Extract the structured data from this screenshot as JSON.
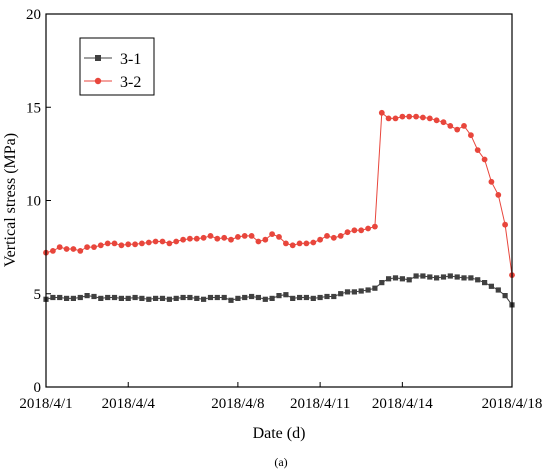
{
  "chart_data": {
    "type": "line",
    "caption": "(a)",
    "xlabel": "Date (d)",
    "ylabel": "Vertical stress (MPa)",
    "ylim": [
      0,
      20
    ],
    "y_ticks": [
      0,
      5,
      10,
      15,
      20
    ],
    "x_tick_labels": [
      "2018/4/1",
      "2018/4/4",
      "2018/4/8",
      "2018/4/11",
      "2018/4/14",
      "2018/4/18"
    ],
    "grid": false,
    "legend": "top-left",
    "series": [
      {
        "name": "3-1",
        "color": "#404040",
        "marker": "square",
        "x": [
          "2018/4/1 00:00",
          "2018/4/1 06:00",
          "2018/4/1 12:00",
          "2018/4/1 18:00",
          "2018/4/2 00:00",
          "2018/4/2 06:00",
          "2018/4/2 12:00",
          "2018/4/2 18:00",
          "2018/4/3 00:00",
          "2018/4/3 06:00",
          "2018/4/3 12:00",
          "2018/4/3 18:00",
          "2018/4/4 00:00",
          "2018/4/4 06:00",
          "2018/4/4 12:00",
          "2018/4/4 18:00",
          "2018/4/5 00:00",
          "2018/4/5 06:00",
          "2018/4/5 12:00",
          "2018/4/5 18:00",
          "2018/4/6 00:00",
          "2018/4/6 06:00",
          "2018/4/6 12:00",
          "2018/4/6 18:00",
          "2018/4/7 00:00",
          "2018/4/7 06:00",
          "2018/4/7 12:00",
          "2018/4/7 18:00",
          "2018/4/8 00:00",
          "2018/4/8 06:00",
          "2018/4/8 12:00",
          "2018/4/8 18:00",
          "2018/4/9 00:00",
          "2018/4/9 06:00",
          "2018/4/9 12:00",
          "2018/4/9 18:00",
          "2018/4/10 00:00",
          "2018/4/10 06:00",
          "2018/4/10 12:00",
          "2018/4/10 18:00",
          "2018/4/11 00:00",
          "2018/4/11 06:00",
          "2018/4/11 12:00",
          "2018/4/11 18:00",
          "2018/4/12 00:00",
          "2018/4/12 06:00",
          "2018/4/12 12:00",
          "2018/4/12 18:00",
          "2018/4/13 00:00",
          "2018/4/13 06:00",
          "2018/4/13 12:00",
          "2018/4/13 18:00",
          "2018/4/14 00:00",
          "2018/4/14 06:00",
          "2018/4/14 12:00",
          "2018/4/14 18:00",
          "2018/4/15 00:00",
          "2018/4/15 06:00",
          "2018/4/15 12:00",
          "2018/4/15 18:00",
          "2018/4/16 00:00",
          "2018/4/16 06:00",
          "2018/4/16 12:00",
          "2018/4/16 18:00",
          "2018/4/17 00:00",
          "2018/4/17 06:00",
          "2018/4/17 12:00",
          "2018/4/17 18:00",
          "2018/4/18 00:00"
        ],
        "y": [
          4.7,
          4.8,
          4.8,
          4.75,
          4.75,
          4.8,
          4.9,
          4.85,
          4.75,
          4.8,
          4.8,
          4.75,
          4.75,
          4.8,
          4.75,
          4.7,
          4.75,
          4.75,
          4.7,
          4.75,
          4.8,
          4.8,
          4.75,
          4.7,
          4.8,
          4.8,
          4.8,
          4.65,
          4.75,
          4.8,
          4.85,
          4.8,
          4.7,
          4.75,
          4.9,
          4.95,
          4.75,
          4.8,
          4.8,
          4.75,
          4.8,
          4.85,
          4.85,
          5.0,
          5.1,
          5.1,
          5.15,
          5.2,
          5.3,
          5.6,
          5.8,
          5.85,
          5.8,
          5.75,
          5.95,
          5.95,
          5.9,
          5.85,
          5.9,
          5.95,
          5.9,
          5.85,
          5.85,
          5.75,
          5.6,
          5.4,
          5.2,
          4.9,
          4.4
        ]
      },
      {
        "name": "3-2",
        "color": "#e8463c",
        "marker": "circle",
        "x": [
          "2018/4/1 00:00",
          "2018/4/1 06:00",
          "2018/4/1 12:00",
          "2018/4/1 18:00",
          "2018/4/2 00:00",
          "2018/4/2 06:00",
          "2018/4/2 12:00",
          "2018/4/2 18:00",
          "2018/4/3 00:00",
          "2018/4/3 06:00",
          "2018/4/3 12:00",
          "2018/4/3 18:00",
          "2018/4/4 00:00",
          "2018/4/4 06:00",
          "2018/4/4 12:00",
          "2018/4/4 18:00",
          "2018/4/5 00:00",
          "2018/4/5 06:00",
          "2018/4/5 12:00",
          "2018/4/5 18:00",
          "2018/4/6 00:00",
          "2018/4/6 06:00",
          "2018/4/6 12:00",
          "2018/4/6 18:00",
          "2018/4/7 00:00",
          "2018/4/7 06:00",
          "2018/4/7 12:00",
          "2018/4/7 18:00",
          "2018/4/8 00:00",
          "2018/4/8 06:00",
          "2018/4/8 12:00",
          "2018/4/8 18:00",
          "2018/4/9 00:00",
          "2018/4/9 06:00",
          "2018/4/9 12:00",
          "2018/4/9 18:00",
          "2018/4/10 00:00",
          "2018/4/10 06:00",
          "2018/4/10 12:00",
          "2018/4/10 18:00",
          "2018/4/11 00:00",
          "2018/4/11 06:00",
          "2018/4/11 12:00",
          "2018/4/11 18:00",
          "2018/4/12 00:00",
          "2018/4/12 06:00",
          "2018/4/12 12:00",
          "2018/4/12 18:00",
          "2018/4/13 00:00",
          "2018/4/13 06:00",
          "2018/4/13 12:00",
          "2018/4/13 18:00",
          "2018/4/14 00:00",
          "2018/4/14 06:00",
          "2018/4/14 12:00",
          "2018/4/14 18:00",
          "2018/4/15 00:00",
          "2018/4/15 06:00",
          "2018/4/15 12:00",
          "2018/4/15 18:00",
          "2018/4/16 00:00",
          "2018/4/16 06:00",
          "2018/4/16 12:00",
          "2018/4/16 18:00",
          "2018/4/17 00:00",
          "2018/4/17 06:00",
          "2018/4/17 12:00",
          "2018/4/17 18:00",
          "2018/4/18 00:00"
        ],
        "y": [
          7.2,
          7.3,
          7.5,
          7.4,
          7.4,
          7.3,
          7.5,
          7.5,
          7.6,
          7.7,
          7.7,
          7.6,
          7.65,
          7.65,
          7.7,
          7.75,
          7.8,
          7.8,
          7.7,
          7.8,
          7.9,
          7.95,
          7.95,
          8.0,
          8.1,
          7.95,
          8.0,
          7.9,
          8.05,
          8.1,
          8.1,
          7.8,
          7.9,
          8.2,
          8.05,
          7.7,
          7.6,
          7.7,
          7.7,
          7.75,
          7.9,
          8.1,
          8.0,
          8.1,
          8.3,
          8.4,
          8.4,
          8.5,
          8.6,
          14.7,
          14.4,
          14.4,
          14.5,
          14.5,
          14.5,
          14.45,
          14.4,
          14.3,
          14.2,
          14.0,
          13.8,
          14.0,
          13.5,
          12.7,
          12.2,
          11.0,
          10.3,
          8.7,
          6.0
        ]
      }
    ]
  }
}
